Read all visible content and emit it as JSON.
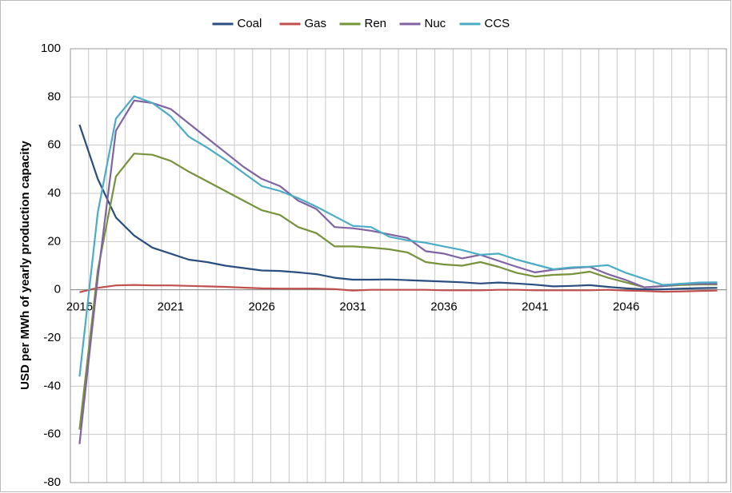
{
  "chart_data": {
    "type": "line",
    "y_label": "USD per MWh of yearly production capacity",
    "categories": [
      "2016",
      null,
      null,
      null,
      null,
      "2021",
      null,
      null,
      null,
      null,
      "2026",
      null,
      null,
      null,
      null,
      "2031",
      null,
      null,
      null,
      null,
      "2036",
      null,
      null,
      null,
      null,
      "2041",
      null,
      null,
      null,
      null,
      "2046",
      null,
      null,
      null,
      null,
      null
    ],
    "series": [
      {
        "name": "Coal",
        "color": "#2a4f7e",
        "values": [
          68.5,
          46,
          30,
          22.5,
          17.5,
          15,
          12.5,
          11.5,
          10,
          9,
          8,
          7.8,
          7.2,
          6.5,
          5,
          4.2,
          4.2,
          4.3,
          4,
          3.7,
          3.4,
          3.1,
          2.6,
          3,
          2.6,
          2.1,
          1.4,
          1.6,
          1.9,
          1.2,
          0.6,
          0.2,
          0.2,
          0.5,
          0.7,
          0.8
        ]
      },
      {
        "name": "Gas",
        "color": "#c0504d",
        "values": [
          -1,
          0.8,
          1.8,
          2,
          1.8,
          1.8,
          1.6,
          1.4,
          1.2,
          0.9,
          0.6,
          0.5,
          0.5,
          0.5,
          0.3,
          -0.3,
          0,
          0,
          0,
          0,
          -0.2,
          -0.2,
          -0.2,
          0,
          0,
          -0.2,
          -0.2,
          -0.2,
          -0.2,
          0,
          -0.3,
          -0.5,
          -0.8,
          -0.7,
          -0.5,
          -0.3
        ]
      },
      {
        "name": "Ren",
        "color": "#77933c",
        "values": [
          -58,
          8,
          47,
          56.5,
          56,
          53.5,
          49,
          45,
          41,
          37,
          33,
          31,
          26,
          23.5,
          18,
          18,
          17.5,
          16.8,
          15.5,
          11.5,
          10.5,
          10,
          11.5,
          9.5,
          7,
          5.5,
          6.2,
          6.5,
          7.5,
          5,
          3,
          1,
          1.5,
          2,
          2.2,
          2.2
        ]
      },
      {
        "name": "Nuc",
        "color": "#8064a2",
        "values": [
          -64,
          5,
          66,
          78.5,
          77.5,
          75,
          69,
          63,
          57,
          51,
          46,
          43,
          37,
          33.5,
          26,
          25.5,
          24.5,
          23,
          21.5,
          16,
          15,
          13,
          14.5,
          12,
          9.5,
          7.2,
          8.3,
          9,
          9.5,
          6.5,
          4,
          1,
          1.5,
          2.3,
          2.5,
          2.5
        ]
      },
      {
        "name": "CCS",
        "color": "#4bacc6",
        "values": [
          -36,
          32,
          71,
          80.3,
          77.5,
          72,
          63.5,
          59,
          54,
          48.5,
          43,
          41,
          38,
          34.5,
          30.5,
          26.5,
          26,
          22,
          20.5,
          19.5,
          18,
          16.5,
          14.5,
          15,
          12.5,
          10.5,
          8.5,
          9.3,
          9.6,
          10.2,
          7,
          4.5,
          2,
          2.5,
          3,
          3.1
        ]
      }
    ],
    "ylim": [
      -80,
      100
    ],
    "yticks": [
      -80,
      -60,
      -40,
      -20,
      0,
      20,
      40,
      60,
      80,
      100
    ],
    "grid": true,
    "legend": "top"
  }
}
